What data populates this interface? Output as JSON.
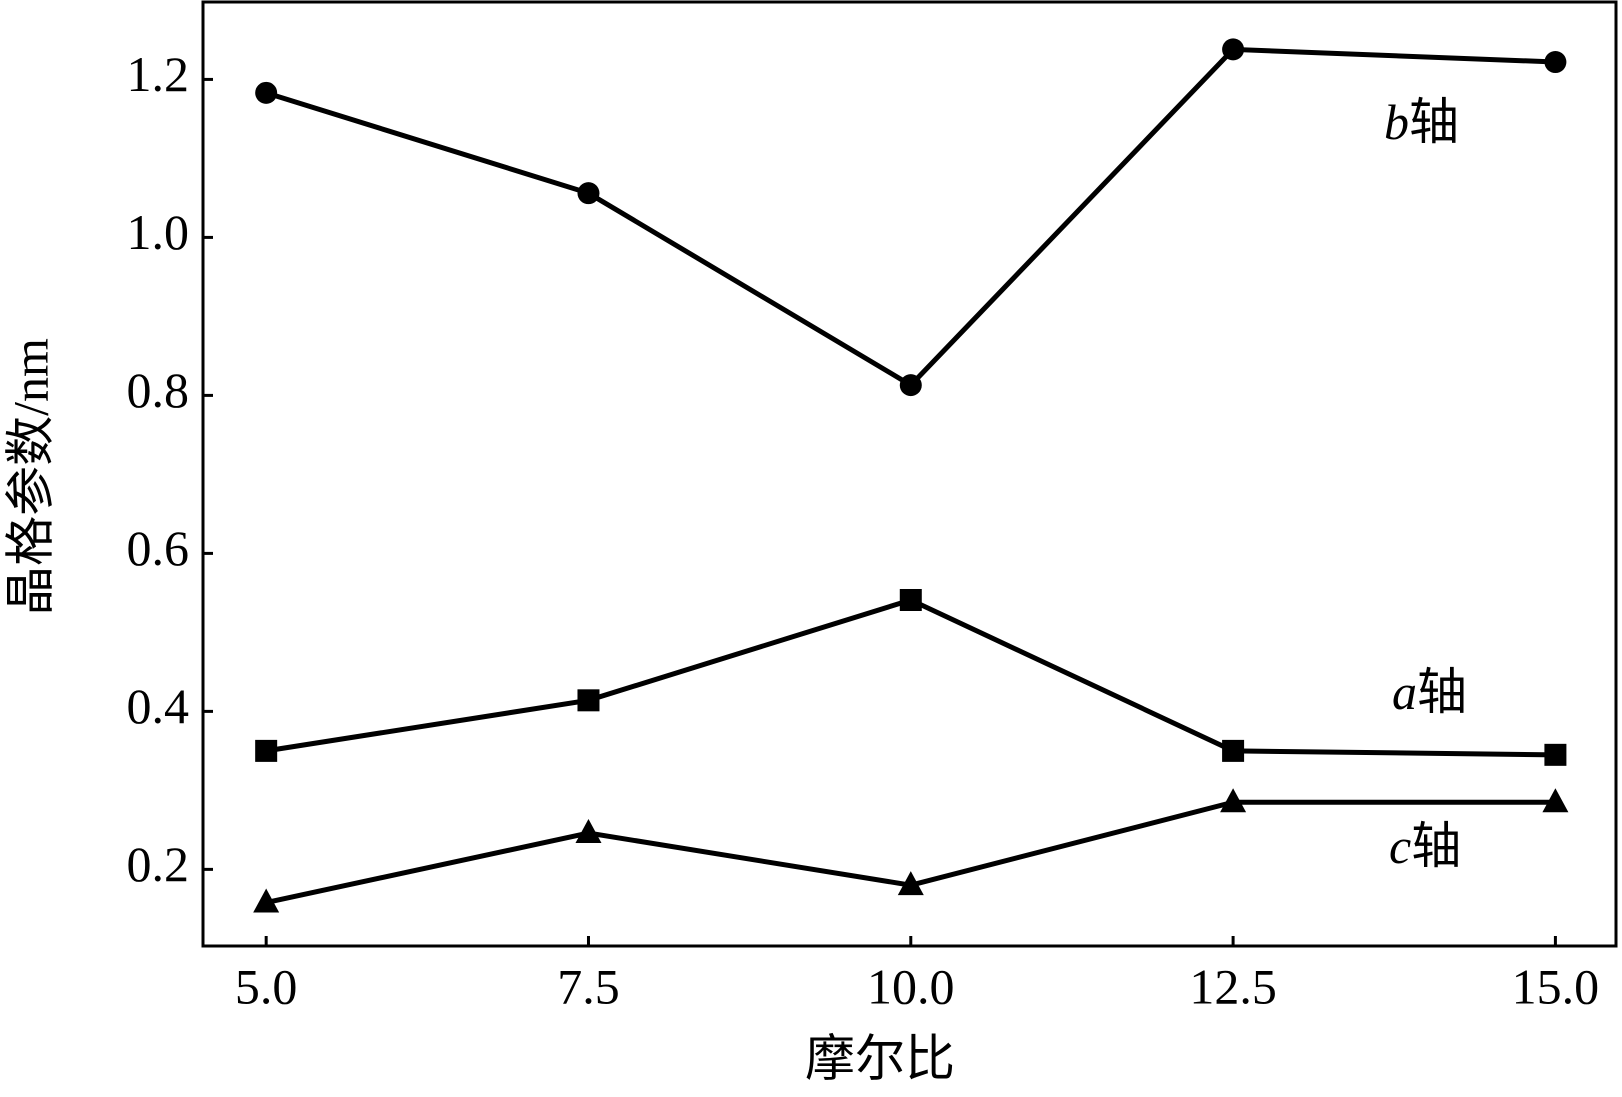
{
  "chart_data": {
    "type": "line",
    "x_label": "摩尔比",
    "y_label": "晶格参数/nm",
    "x": [
      5.0,
      7.5,
      10.0,
      12.5,
      15.0
    ],
    "xlim": [
      4.51,
      15.47
    ],
    "xticks": [
      {
        "value": 5,
        "label": "5.0"
      },
      7.5,
      {
        "value": 10,
        "label": "10.0"
      },
      12.5,
      {
        "value": 15,
        "label": "15.0"
      }
    ],
    "ylim": [
      0.103,
      1.298
    ],
    "yticks": [
      0.2,
      0.4,
      0.6,
      0.8,
      {
        "value": 1,
        "label": "1.0"
      },
      1.2
    ],
    "series": [
      {
        "name": "b轴",
        "color": "#000000",
        "marker": "circle",
        "values": [
          1.183,
          1.056,
          0.813,
          1.238,
          1.222
        ]
      },
      {
        "name": "a轴",
        "color": "#000000",
        "marker": "square",
        "values": [
          0.35,
          0.414,
          0.541,
          0.35,
          0.345
        ]
      },
      {
        "name": "c轴",
        "color": "#000000",
        "marker": "triangle",
        "values": [
          0.158,
          0.246,
          0.18,
          0.285,
          0.285
        ]
      }
    ]
  }
}
